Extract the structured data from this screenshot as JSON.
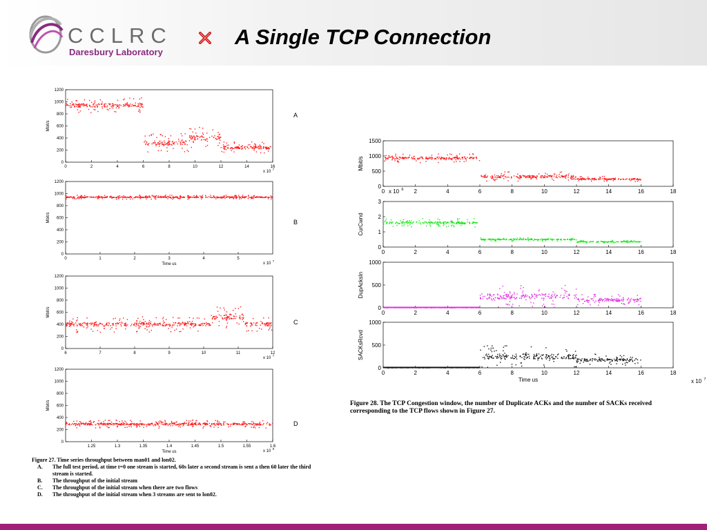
{
  "header": {
    "logo_name": "CCLRC",
    "logo_sub": "Daresbury Laboratory",
    "title": "A Single TCP Connection"
  },
  "colors": {
    "red": "#ff1a1a",
    "green": "#19e619",
    "magenta": "#e02ce0",
    "black": "#111111",
    "bar": "#a0207a"
  },
  "icons": {
    "logo": "cclrc-swirl-logo",
    "bullet": "x-bullet-icon"
  },
  "figure27": {
    "caption": {
      "head": "Figure 27. Time series throughput between man01 and lon02.",
      "items": [
        {
          "key": "A.",
          "text": "The full test period, at time t=0 one stream is started, 60s later a second stream is sent a then 60 later the third stream is started."
        },
        {
          "key": "B.",
          "text": "The throughput of the initial stream"
        },
        {
          "key": "C.",
          "text": "The throughput of the initial stream when there are two flows"
        },
        {
          "key": "D.",
          "text": "The throughput of the initial stream when 3 streams are sent to lon02."
        }
      ]
    }
  },
  "figure28": {
    "caption": "Figure 28. The TCP Congestion window, the number of Duplicate ACKs and the number of SACKs received corresponding to the TCP flows shown in Figure 27."
  },
  "chart_data": [
    {
      "type": "scatter",
      "panel": "A",
      "ylabel": "Mbit/s",
      "xlabel": "",
      "x_multiplier": "x 10^7",
      "xlim": [
        0,
        16
      ],
      "ylim": [
        0,
        1200
      ],
      "xticks": [
        "0",
        "2",
        "4",
        "6",
        "8",
        "10",
        "12",
        "14",
        "16"
      ],
      "yticks": [
        "0",
        "200",
        "400",
        "600",
        "800",
        "1000",
        "1200"
      ],
      "series": [
        {
          "color": "red",
          "segments": [
            {
              "x": [
                0,
                6
              ],
              "y": 940,
              "spread": 120
            },
            {
              "x": [
                6,
                9.5
              ],
              "y": 320,
              "spread": 140
            },
            {
              "x": [
                9.5,
                12
              ],
              "y": 400,
              "spread": 160
            },
            {
              "x": [
                12,
                16
              ],
              "y": 240,
              "spread": 90
            }
          ]
        }
      ]
    },
    {
      "type": "scatter",
      "panel": "B",
      "ylabel": "Mbit/s",
      "xlabel": "Time us",
      "x_multiplier": "x 10^7",
      "xlim": [
        0,
        6
      ],
      "ylim": [
        0,
        1200
      ],
      "xticks": [
        "0",
        "1",
        "2",
        "3",
        "4",
        "5"
      ],
      "yticks": [
        "0",
        "200",
        "400",
        "600",
        "800",
        "1000",
        "1200"
      ],
      "series": [
        {
          "color": "red",
          "segments": [
            {
              "x": [
                0,
                6
              ],
              "y": 940,
              "spread": 30
            }
          ]
        }
      ]
    },
    {
      "type": "scatter",
      "panel": "C",
      "ylabel": "Mbit/s",
      "xlabel": "",
      "x_multiplier": "x 10^7",
      "xlim": [
        6,
        12
      ],
      "ylim": [
        0,
        1200
      ],
      "xticks": [
        "6",
        "7",
        "8",
        "9",
        "10",
        "11",
        "12"
      ],
      "yticks": [
        "0",
        "200",
        "400",
        "600",
        "800",
        "1000",
        "1200"
      ],
      "series": [
        {
          "color": "red",
          "segments": [
            {
              "x": [
                6,
                10.2
              ],
              "y": 400,
              "spread": 120
            },
            {
              "x": [
                10.2,
                11.2
              ],
              "y": 520,
              "spread": 160
            },
            {
              "x": [
                11.2,
                12
              ],
              "y": 400,
              "spread": 120
            }
          ]
        }
      ]
    },
    {
      "type": "scatter",
      "panel": "D",
      "ylabel": "Mbit/s",
      "xlabel": "Time us",
      "x_multiplier": "x 10^8",
      "xlim": [
        1.2,
        1.6
      ],
      "ylim": [
        0,
        1200
      ],
      "xticks": [
        "1.25",
        "1.3",
        "1.35",
        "1.4",
        "1.45",
        "1.5",
        "1.55",
        "1.6"
      ],
      "yticks": [
        "0",
        "200",
        "400",
        "600",
        "800",
        "1000",
        "1200"
      ],
      "series": [
        {
          "color": "red",
          "segments": [
            {
              "x": [
                1.2,
                1.6
              ],
              "y": 290,
              "spread": 60
            }
          ]
        }
      ]
    },
    {
      "type": "scatter",
      "panel": "Mbit/s",
      "ylabel": "Mbit/s",
      "xlabel": "",
      "x_multiplier": "x 10^6",
      "xlim": [
        0,
        18
      ],
      "ylim": [
        0,
        1500
      ],
      "xticks": [
        "0",
        "2",
        "4",
        "6",
        "8",
        "10",
        "12",
        "14",
        "16",
        "18"
      ],
      "yticks": [
        "0",
        "500",
        "1000",
        "1500"
      ],
      "series": [
        {
          "color": "red",
          "segments": [
            {
              "x": [
                0,
                6
              ],
              "y": 930,
              "spread": 140
            },
            {
              "x": [
                6,
                12
              ],
              "y": 320,
              "spread": 150
            },
            {
              "x": [
                12,
                16
              ],
              "y": 240,
              "spread": 80
            }
          ]
        }
      ]
    },
    {
      "type": "scatter",
      "panel": "CurCwnd",
      "ylabel": "CurCwnd",
      "xlabel": "",
      "x_multiplier": "",
      "xlim": [
        0,
        18
      ],
      "ylim": [
        0,
        3
      ],
      "xticks": [
        "0",
        "2",
        "4",
        "6",
        "8",
        "10",
        "12",
        "14",
        "16",
        "18"
      ],
      "yticks": [
        "0",
        "1",
        "2",
        "3"
      ],
      "series": [
        {
          "color": "green",
          "segments": [
            {
              "x": [
                0,
                6
              ],
              "y": 1.6,
              "spread": 0.25
            },
            {
              "x": [
                6,
                12
              ],
              "y": 0.5,
              "spread": 0.1
            },
            {
              "x": [
                12,
                16
              ],
              "y": 0.35,
              "spread": 0.08
            }
          ]
        }
      ]
    },
    {
      "type": "scatter",
      "panel": "DupAcksIn",
      "ylabel": "DupAcksIn",
      "xlabel": "",
      "x_multiplier": "",
      "xlim": [
        0,
        18
      ],
      "ylim": [
        0,
        1000
      ],
      "xticks": [
        "0",
        "2",
        "4",
        "6",
        "8",
        "10",
        "12",
        "14",
        "16",
        "18"
      ],
      "yticks": [
        "0",
        "500",
        "1000"
      ],
      "series": [
        {
          "color": "magenta",
          "segments": [
            {
              "x": [
                0,
                6
              ],
              "y": 0,
              "spread": 0
            },
            {
              "x": [
                6,
                12
              ],
              "y": 250,
              "spread": 220
            },
            {
              "x": [
                12,
                16
              ],
              "y": 170,
              "spread": 120
            }
          ]
        }
      ]
    },
    {
      "type": "scatter",
      "panel": "SACKsRcvd",
      "ylabel": "SACKsRcvd",
      "xlabel": "Time us",
      "x_multiplier": "x 10^7",
      "xlim": [
        0,
        18
      ],
      "ylim": [
        0,
        1000
      ],
      "xticks": [
        "0",
        "2",
        "4",
        "6",
        "8",
        "10",
        "12",
        "14",
        "16",
        "18"
      ],
      "yticks": [
        "0",
        "500",
        "1000"
      ],
      "series": [
        {
          "color": "black",
          "segments": [
            {
              "x": [
                0,
                6
              ],
              "y": 0,
              "spread": 0
            },
            {
              "x": [
                6,
                12
              ],
              "y": 250,
              "spread": 220
            },
            {
              "x": [
                12,
                16
              ],
              "y": 170,
              "spread": 120
            }
          ]
        }
      ]
    }
  ]
}
